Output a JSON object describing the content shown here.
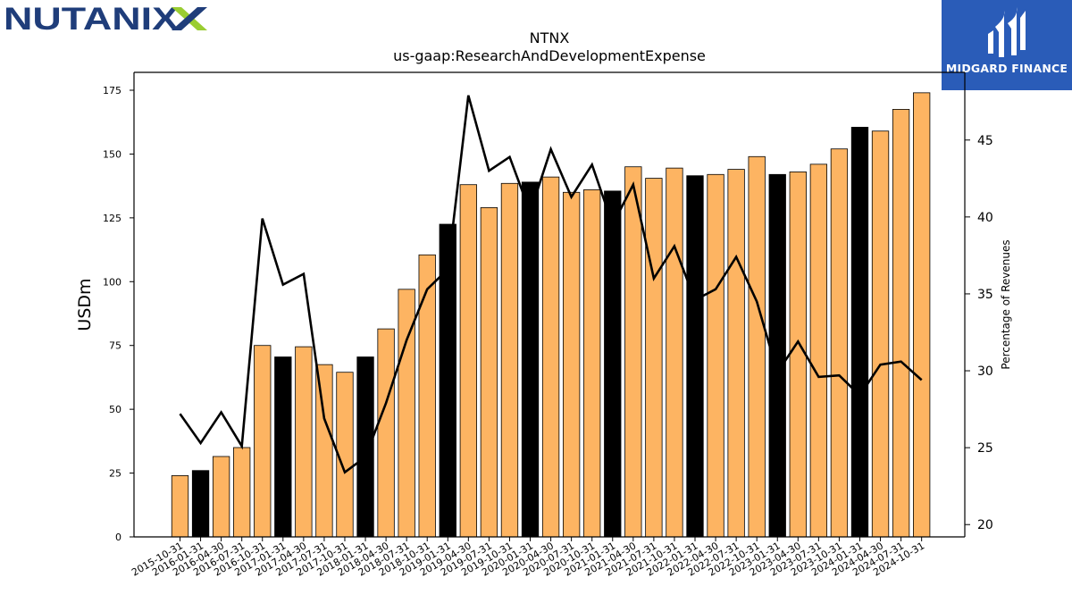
{
  "branding": {
    "left_logo_text": "NUTANIX",
    "right_logo_text": "MIDGARD FINANCE",
    "right_logo_bg": "#2a5cb8",
    "nutanix_blue": "#1f3d7a",
    "nutanix_green": "#9acd32"
  },
  "chart_data": {
    "type": "bar",
    "title": "NTNX",
    "subtitle": "us-gaap:ResearchAndDevelopmentExpense",
    "ylabel": "USDm",
    "y2label": "Percentage of Revenues",
    "ylim": [
      0,
      182
    ],
    "y2lim": [
      19.2,
      49.4
    ],
    "yticks": [
      0,
      25,
      50,
      75,
      100,
      125,
      150,
      175
    ],
    "y2ticks": [
      20,
      25,
      30,
      35,
      40,
      45
    ],
    "categories": [
      "2015-10-31",
      "2016-01-31",
      "2016-04-30",
      "2016-07-31",
      "2016-10-31",
      "2017-01-31",
      "2017-04-30",
      "2017-07-31",
      "2017-10-31",
      "2018-01-31",
      "2018-04-30",
      "2018-07-31",
      "2018-10-31",
      "2019-01-31",
      "2019-04-30",
      "2019-07-31",
      "2019-10-31",
      "2020-01-31",
      "2020-04-30",
      "2020-07-31",
      "2020-10-31",
      "2021-01-31",
      "2021-04-30",
      "2021-07-31",
      "2021-10-31",
      "2022-01-31",
      "2022-04-30",
      "2022-07-31",
      "2022-10-31",
      "2023-01-31",
      "2023-04-30",
      "2023-07-31",
      "2023-10-31",
      "2024-01-31",
      "2024-04-30",
      "2024-07-31",
      "2024-10-31"
    ],
    "values": [
      24,
      26,
      31.5,
      35,
      75,
      70.5,
      74.5,
      67.5,
      64.5,
      70.5,
      81.5,
      97,
      110.5,
      122.5,
      138,
      129,
      138.5,
      139,
      141,
      135,
      136,
      135.5,
      145,
      140.5,
      144.5,
      141.5,
      142,
      144,
      149,
      142,
      143,
      146,
      152,
      160.5,
      159,
      167.5,
      174
    ],
    "highlighted": [
      false,
      true,
      false,
      false,
      false,
      true,
      false,
      false,
      false,
      true,
      false,
      false,
      false,
      true,
      false,
      false,
      false,
      true,
      false,
      false,
      false,
      true,
      false,
      false,
      false,
      true,
      false,
      false,
      false,
      true,
      false,
      false,
      false,
      true,
      false,
      false,
      false
    ],
    "line_series": {
      "name": "",
      "axis": "right",
      "values": [
        27.2,
        25.3,
        27.3,
        25.1,
        39.9,
        35.6,
        36.3,
        26.9,
        23.4,
        24.4,
        27.9,
        32,
        35.3,
        36.6,
        47.9,
        43,
        43.9,
        40.3,
        44.4,
        41.3,
        43.4,
        39.5,
        42.1,
        36,
        38.1,
        34.6,
        35.3,
        37.4,
        34.5,
        29.9,
        31.9,
        29.6,
        29.7,
        28.4,
        30.4,
        30.6,
        29.4
      ]
    },
    "colors": {
      "bar": "#fdb462",
      "bar_highlight": "#000000",
      "line": "#000000"
    }
  }
}
